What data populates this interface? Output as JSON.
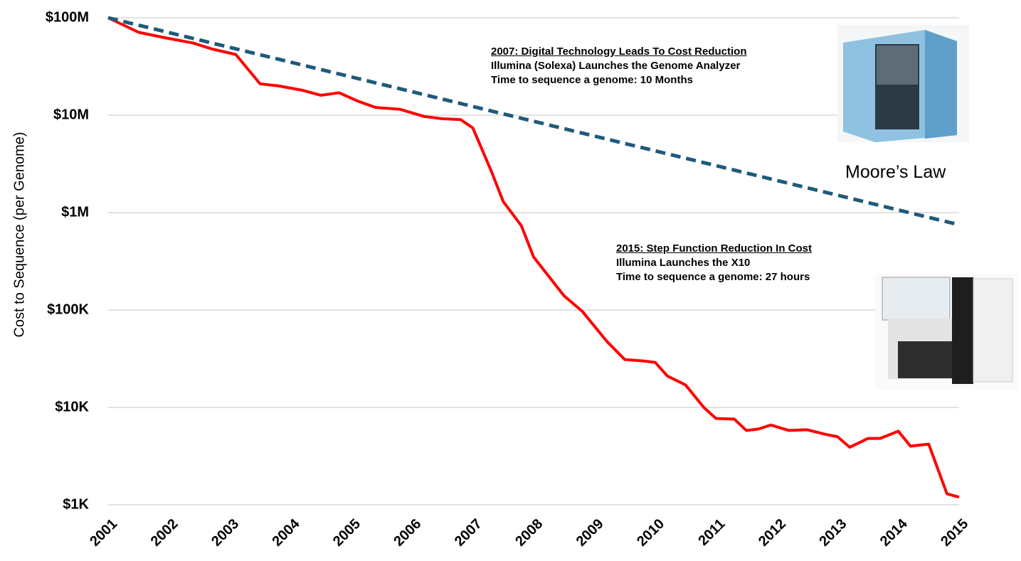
{
  "chart_data": {
    "type": "line",
    "y_label": "Cost to Sequence (per Genome)",
    "log_y": true,
    "grid": true,
    "xlim": [
      2001,
      2015
    ],
    "xticks": [
      2001,
      2002,
      2003,
      2004,
      2005,
      2006,
      2007,
      2008,
      2009,
      2010,
      2011,
      2012,
      2013,
      2014,
      2015
    ],
    "ylim": [
      1000,
      100000000
    ],
    "yticks": [
      {
        "value": 1000,
        "label": "$1K"
      },
      {
        "value": 10000,
        "label": "$10K"
      },
      {
        "value": 100000,
        "label": "$100K"
      },
      {
        "value": 1000000,
        "label": "$1M"
      },
      {
        "value": 10000000,
        "label": "$10M"
      },
      {
        "value": 100000000,
        "label": "$100M"
      }
    ],
    "series": [
      {
        "name": "Cost to Sequence",
        "color": "#ff0000",
        "dashed": false,
        "x": [
          2001.0,
          2001.5,
          2001.9,
          2002.4,
          2002.7,
          2003.1,
          2003.5,
          2003.8,
          2004.2,
          2004.5,
          2004.8,
          2005.1,
          2005.4,
          2005.8,
          2006.2,
          2006.5,
          2006.8,
          2007.0,
          2007.3,
          2007.5,
          2007.8,
          2008.0,
          2008.5,
          2008.8,
          2009.2,
          2009.5,
          2009.8,
          2010.0,
          2010.2,
          2010.5,
          2010.8,
          2011.0,
          2011.3,
          2011.5,
          2011.7,
          2011.9,
          2012.2,
          2012.5,
          2012.8,
          2013.0,
          2013.2,
          2013.5,
          2013.7,
          2014.0,
          2014.2,
          2014.5,
          2014.8,
          2015.0
        ],
        "values": [
          100000000,
          71000000,
          63000000,
          55000000,
          48000000,
          42000000,
          21000000,
          20000000,
          18000000,
          16000000,
          17000000,
          14000000,
          12000000,
          11500000,
          9700000,
          9200000,
          9000000,
          7400000,
          2700000,
          1300000,
          730000,
          350000,
          140000,
          97000,
          48000,
          31000,
          30000,
          29000,
          21000,
          17000,
          10000,
          7700,
          7600,
          5800,
          6000,
          6600,
          5800,
          5900,
          5300,
          5000,
          3900,
          4800,
          4800,
          5700,
          4000,
          4200,
          1300,
          1200
        ]
      },
      {
        "name": "Moore’s Law",
        "color": "#1f5a7a",
        "dashed": true,
        "x": [
          2001,
          2015
        ],
        "values": [
          100000000,
          750000
        ]
      }
    ],
    "annotations": [
      {
        "heading": "2007: Digital Technology Leads To Cost Reduction",
        "lines": [
          "Illumina (Solexa) Launches the Genome Analyzer",
          "Time to sequence a genome: 10 Months"
        ]
      },
      {
        "heading": "2015: Step Function Reduction In Cost",
        "lines": [
          "Illumina Launches the X10",
          "Time to sequence a genome: 27 hours"
        ]
      }
    ]
  }
}
